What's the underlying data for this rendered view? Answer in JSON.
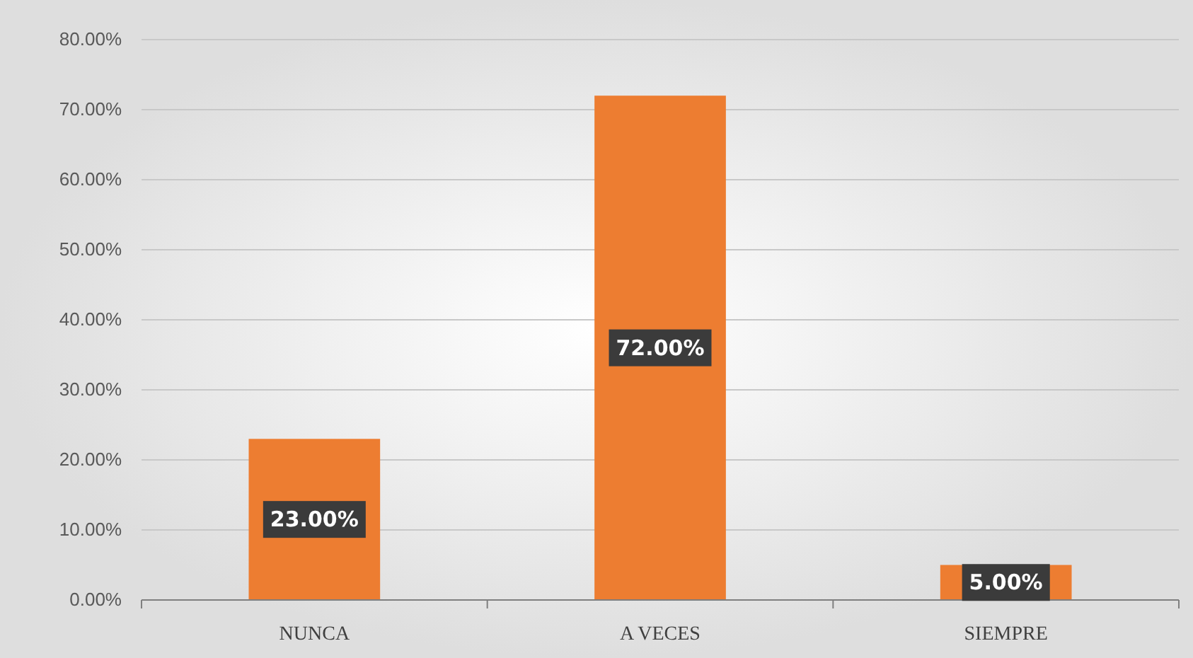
{
  "chart_data": {
    "type": "bar",
    "categories": [
      "NUNCA",
      "A VECES",
      "SIEMPRE"
    ],
    "values": [
      23,
      72,
      5
    ],
    "color": "#ed7d31",
    "value_labels": [
      "23.00%",
      "72.00%",
      "5.00%"
    ],
    "ylim": [
      0,
      80
    ],
    "yticks": [
      {
        "value": 0,
        "label": "0.00%"
      },
      {
        "value": 10,
        "label": "10.00%"
      },
      {
        "value": 20,
        "label": "20.00%"
      },
      {
        "value": 30,
        "label": "30.00%"
      },
      {
        "value": 40,
        "label": "40.00%"
      },
      {
        "value": 50,
        "label": "50.00%"
      },
      {
        "value": 60,
        "label": "60.00%"
      },
      {
        "value": 70,
        "label": "70.00%"
      },
      {
        "value": 80,
        "label": "80.00%"
      }
    ],
    "grid": "y"
  }
}
